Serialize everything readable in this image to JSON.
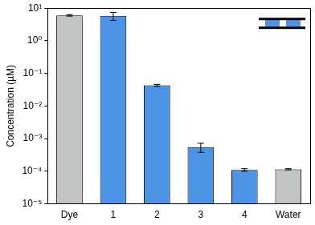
{
  "chart_data": {
    "type": "bar",
    "ylabel": "Concentration (µM)",
    "categories": [
      "Dye",
      "1",
      "2",
      "3",
      "4",
      "Water"
    ],
    "values": [
      6,
      5.8,
      0.043,
      0.00055,
      0.00011,
      0.000115
    ],
    "errors": [
      0.3,
      1.6,
      0.003,
      0.00017,
      1e-05,
      5e-06
    ],
    "colors": [
      "#c0c4c3",
      "#4b94e6",
      "#4b94e6",
      "#4b94e6",
      "#4b94e6",
      "#c0c4c3"
    ],
    "ylim": [
      1e-05,
      10
    ],
    "yticks": [
      {
        "value": 1e-05,
        "label": "10⁻⁵"
      },
      {
        "value": 0.0001,
        "label": "10⁻⁴"
      },
      {
        "value": 0.001,
        "label": "10⁻³"
      },
      {
        "value": 0.01,
        "label": "10⁻²"
      },
      {
        "value": 0.1,
        "label": "10⁻¹"
      },
      {
        "value": 1,
        "label": "10⁰"
      },
      {
        "value": 10,
        "label": "10¹"
      }
    ],
    "log": "y",
    "grid": false
  }
}
